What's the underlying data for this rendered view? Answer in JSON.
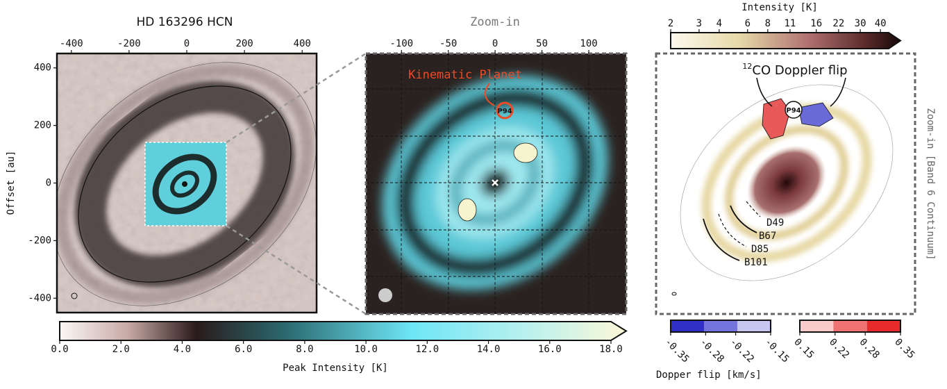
{
  "chart_data": [
    {
      "type": "image",
      "title": "HD 163296 HCN",
      "ylabel": "Offset [au]",
      "xlim": [
        -450,
        450
      ],
      "ylim": [
        -450,
        450
      ],
      "xticks": [
        -400,
        -200,
        0,
        200,
        400
      ],
      "yticks": [
        -400,
        -200,
        0,
        200,
        400
      ]
    },
    {
      "type": "image",
      "title": "Zoom-in",
      "annotation": "Kinematic Planet",
      "marker": "P94",
      "xlim": [
        -138,
        140
      ],
      "xticks": [
        -100,
        -50,
        0,
        50,
        100
      ]
    },
    {
      "type": "image",
      "side_label": "Zoom-in [Band 6 Continuum]",
      "annotation_sup": "12",
      "annotation": "CO Doppler flip",
      "marker": "P94",
      "features": [
        "D49",
        "B67",
        "D85",
        "B101"
      ]
    },
    {
      "type": "colorbar",
      "label": "Peak Intensity [K]",
      "xlim": [
        0,
        18
      ],
      "xticks": [
        {
          "value": 0,
          "label": "0.0"
        },
        {
          "value": 2,
          "label": "2.0"
        },
        {
          "value": 4,
          "label": "4.0"
        },
        {
          "value": 6,
          "label": "6.0"
        },
        {
          "value": 8,
          "label": "8.0"
        },
        {
          "value": 10,
          "label": "10.0"
        },
        {
          "value": 12,
          "label": "12.0"
        },
        {
          "value": 14,
          "label": "14.0"
        },
        {
          "value": 16,
          "label": "16.0"
        },
        {
          "value": 18,
          "label": "18.0"
        }
      ],
      "extend": true
    },
    {
      "type": "colorbar",
      "label": "Intensity [K]",
      "log_scale": true,
      "xlim": [
        2,
        45
      ],
      "xticks": [
        2,
        3,
        4,
        6,
        8,
        11,
        16,
        22,
        30,
        40
      ],
      "extend": true
    },
    {
      "type": "colorbar",
      "label": "Dopper flip [km/s]",
      "xlim": [
        -0.35,
        -0.15
      ],
      "xticks": [
        -0.35,
        -0.28,
        -0.22,
        -0.15
      ],
      "colors": [
        "#3030c8",
        "#7474dc",
        "#c6c6f0"
      ]
    },
    {
      "type": "colorbar",
      "xlim": [
        0.15,
        0.35
      ],
      "xticks": [
        0.15,
        0.22,
        0.28,
        0.35
      ],
      "colors": [
        "#f8caca",
        "#f07272",
        "#e82a2a"
      ]
    }
  ]
}
